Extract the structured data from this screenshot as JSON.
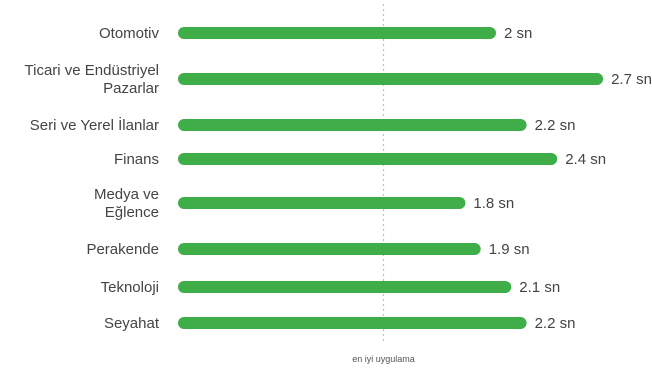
{
  "chart_data": {
    "type": "bar",
    "orientation": "horizontal",
    "categories": [
      [
        "Otomotiv"
      ],
      [
        "Ticari ve Endüstriyel",
        "Pazarlar"
      ],
      [
        "Seri ve Yerel İlanlar"
      ],
      [
        "Finans"
      ],
      [
        "Medya ve",
        "Eğlence"
      ],
      [
        "Perakende"
      ],
      [
        "Teknoloji"
      ],
      [
        "Seyahat"
      ]
    ],
    "values": [
      2.0,
      2.7,
      2.2,
      2.4,
      1.8,
      1.9,
      2.1,
      2.2
    ],
    "value_labels": [
      "2 sn",
      "2.7 sn",
      "2.2 sn",
      "2.4 sn",
      "1.8 sn",
      "1.9 sn",
      "2.1 sn",
      "2.2 sn"
    ],
    "reference_line": {
      "value": 1.3,
      "label": "en iyi uygulama"
    },
    "xlim": [
      0,
      2.7
    ],
    "grid": false,
    "legend": "none",
    "colors": {
      "bar": "#3fae49",
      "reference_line": "#bfbfbf",
      "text": "#444444"
    }
  }
}
